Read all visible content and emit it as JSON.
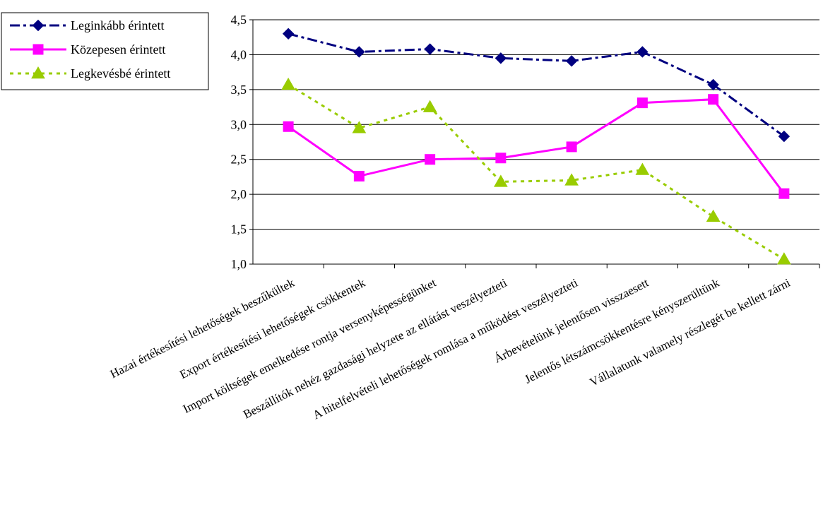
{
  "chart_data": {
    "type": "line",
    "title": "",
    "xlabel": "",
    "ylabel": "",
    "ylim": [
      1.0,
      4.5
    ],
    "ytick_step": 0.5,
    "ytick_labels": [
      "1,0",
      "1,5",
      "2,0",
      "2,5",
      "3,0",
      "3,5",
      "4,0",
      "4,5"
    ],
    "grid": "horizontal",
    "legend_position": "top-left",
    "categories": [
      "Hazai értékesítési lehetőségek  beszűkültek",
      "Export értékesítési lehetőségek csökkentek",
      "Import költségek emelkedése rontja versenyképességünket",
      "Beszállítók nehéz gazdasági helyzete az ellátást veszélyezteti",
      "A hitelfelvételi lehetőségek romlása a működést veszélyezteti",
      "Árbevételünk jelentősen visszaesett",
      "Jelentős létszámcsökkentésre kényszerültünk",
      "Vállalatunk valamely részlegét be kellett zárni"
    ],
    "series": [
      {
        "name": "Leginkább érintett",
        "values": [
          4.3,
          4.04,
          4.08,
          3.95,
          3.91,
          4.04,
          3.57,
          2.83
        ],
        "color": "#000080",
        "line_style": "dash-dot",
        "marker": "diamond"
      },
      {
        "name": "Közepesen érintett",
        "values": [
          2.97,
          2.26,
          2.5,
          2.52,
          2.68,
          3.31,
          3.36,
          2.01
        ],
        "color": "#ff00ff",
        "line_style": "solid",
        "marker": "square"
      },
      {
        "name": "Legkevésbé érintett",
        "values": [
          3.57,
          2.95,
          3.25,
          2.18,
          2.2,
          2.35,
          1.68,
          1.07
        ],
        "color": "#99cc00",
        "line_style": "dotted",
        "marker": "triangle"
      }
    ]
  }
}
